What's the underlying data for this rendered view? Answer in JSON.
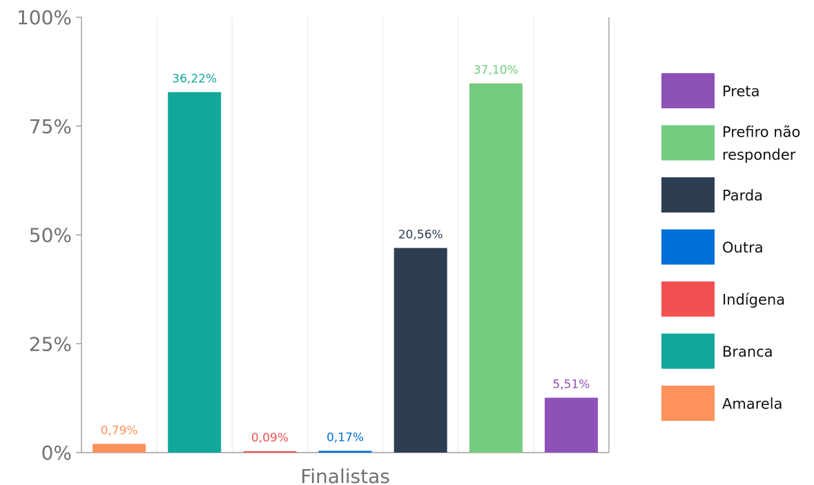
{
  "chart_data": {
    "type": "bar",
    "xlabel": "Finalistas",
    "ylabel": "",
    "title": "",
    "ylim": [
      0,
      100
    ],
    "yticks": [
      "0%",
      "25%",
      "50%",
      "75%",
      "100%"
    ],
    "yaxis_format": "percent",
    "grid": {
      "vertical": true,
      "horizontal": false
    },
    "legend_position": "right",
    "series": [
      {
        "name": "Amarela",
        "label": "0,79%",
        "value": 2,
        "color": "#FF915A"
      },
      {
        "name": "Branca",
        "label": "36,22%",
        "value": 82.8,
        "color": "#11A79B"
      },
      {
        "name": "Indígena",
        "label": "0,09%",
        "value": 0.3,
        "color": "#F25151"
      },
      {
        "name": "Outra",
        "label": "0,17%",
        "value": 0.4,
        "color": "#006FD6"
      },
      {
        "name": "Parda",
        "label": "20,56%",
        "value": 47,
        "color": "#2D3E52"
      },
      {
        "name": "Prefiro não responder",
        "label": "37,10%",
        "value": 84.8,
        "color": "#74CC80"
      },
      {
        "name": "Preta",
        "label": "5,51%",
        "value": 12.6,
        "color": "#8E51B8"
      }
    ],
    "legend": [
      {
        "lines": [
          "Preta"
        ],
        "color": "#8E51B8"
      },
      {
        "lines": [
          "Prefiro não",
          "responder"
        ],
        "color": "#74CC80"
      },
      {
        "lines": [
          "Parda"
        ],
        "color": "#2D3E52"
      },
      {
        "lines": [
          "Outra"
        ],
        "color": "#006FD6"
      },
      {
        "lines": [
          "Indígena"
        ],
        "color": "#F25151"
      },
      {
        "lines": [
          "Branca"
        ],
        "color": "#11A79B"
      },
      {
        "lines": [
          "Amarela"
        ],
        "color": "#FF915A"
      }
    ]
  }
}
